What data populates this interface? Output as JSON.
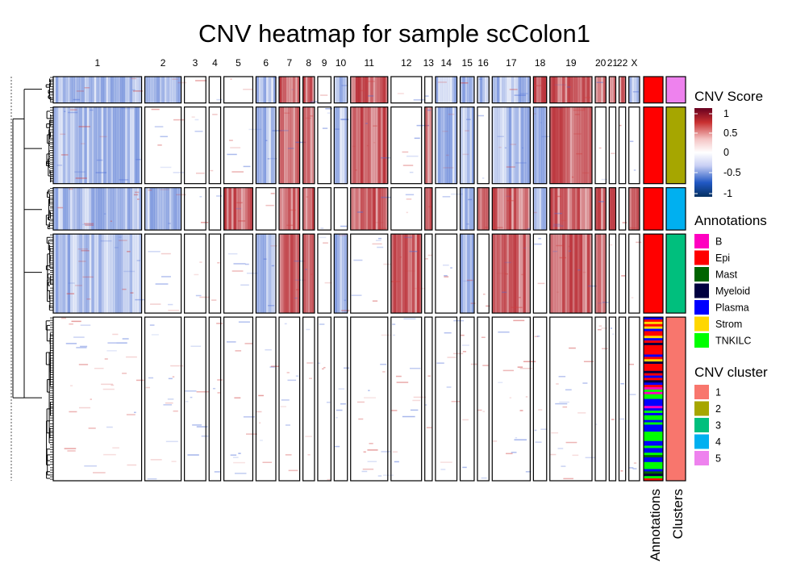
{
  "chart_data": {
    "type": "heatmap",
    "title": "CNV heatmap for sample scColon1",
    "chromosomes": [
      "1",
      "2",
      "3",
      "4",
      "5",
      "6",
      "7",
      "8",
      "9",
      "10",
      "11",
      "12",
      "13",
      "14",
      "15",
      "16",
      "17",
      "18",
      "19",
      "20",
      "21",
      "22",
      "X"
    ],
    "chromosome_relative_widths": [
      107,
      44,
      26,
      14,
      35,
      24,
      25,
      14,
      16,
      16,
      45,
      37,
      9,
      26,
      17,
      14,
      46,
      16,
      51,
      13,
      8,
      8,
      13
    ],
    "clusters": [
      {
        "id": "5",
        "relative_height": 33,
        "color": "#EE82EE"
      },
      {
        "id": "2",
        "relative_height": 96,
        "color": "#A6A600"
      },
      {
        "id": "4",
        "relative_height": 53,
        "color": "#00B0F0"
      },
      {
        "id": "3",
        "relative_height": 99,
        "color": "#00BF7D"
      },
      {
        "id": "1",
        "relative_height": 205,
        "color": "#F8766D"
      }
    ],
    "cnv_pattern_by_cluster": {
      "5": {
        "gain": [
          "7",
          "8",
          "11",
          "18",
          "19",
          "20",
          "21",
          "22"
        ],
        "loss": [
          "1",
          "2",
          "6",
          "10",
          "14",
          "15",
          "16",
          "17",
          "X"
        ]
      },
      "2": {
        "gain": [
          "7",
          "8",
          "11",
          "13",
          "19"
        ],
        "loss": [
          "1",
          "6",
          "10",
          "14",
          "15",
          "17",
          "18"
        ]
      },
      "4": {
        "gain": [
          "5",
          "7",
          "8",
          "11",
          "13",
          "16",
          "17",
          "19",
          "20",
          "21",
          "X"
        ],
        "loss": [
          "1",
          "2",
          "15",
          "18"
        ]
      },
      "3": {
        "gain": [
          "7",
          "8",
          "12",
          "17",
          "19",
          "20"
        ],
        "loss": [
          "1",
          "6",
          "10",
          "15"
        ]
      },
      "1": {
        "gain": [],
        "loss": []
      }
    },
    "annotation_strip": {
      "title": "Annotations"
    },
    "cluster_strip": {
      "title": "Clusters"
    },
    "legends": {
      "cnv_score": {
        "title": "CNV Score",
        "ticks": [
          "1",
          "0.5",
          "0",
          "-0.5",
          "-1"
        ],
        "range": [
          -1,
          1
        ],
        "colors": [
          "#053061",
          "#2158c4",
          "#c8cff4",
          "#ffffff",
          "#f4c4c4",
          "#c83030",
          "#67001f"
        ]
      },
      "annotations": {
        "title": "Annotations",
        "items": [
          {
            "label": "B",
            "color": "#FF00C0"
          },
          {
            "label": "Epi",
            "color": "#FF0000"
          },
          {
            "label": "Mast",
            "color": "#006400"
          },
          {
            "label": "Myeloid",
            "color": "#000040"
          },
          {
            "label": "Plasma",
            "color": "#0000FF"
          },
          {
            "label": "Strom",
            "color": "#FFD700"
          },
          {
            "label": "TNKILC",
            "color": "#00FF00"
          }
        ]
      },
      "cnv_cluster": {
        "title": "CNV cluster",
        "items": [
          {
            "label": "1",
            "color": "#F8766D"
          },
          {
            "label": "2",
            "color": "#A6A600"
          },
          {
            "label": "3",
            "color": "#00BF7D"
          },
          {
            "label": "4",
            "color": "#00B0F0"
          },
          {
            "label": "5",
            "color": "#EE82EE"
          }
        ]
      }
    }
  }
}
